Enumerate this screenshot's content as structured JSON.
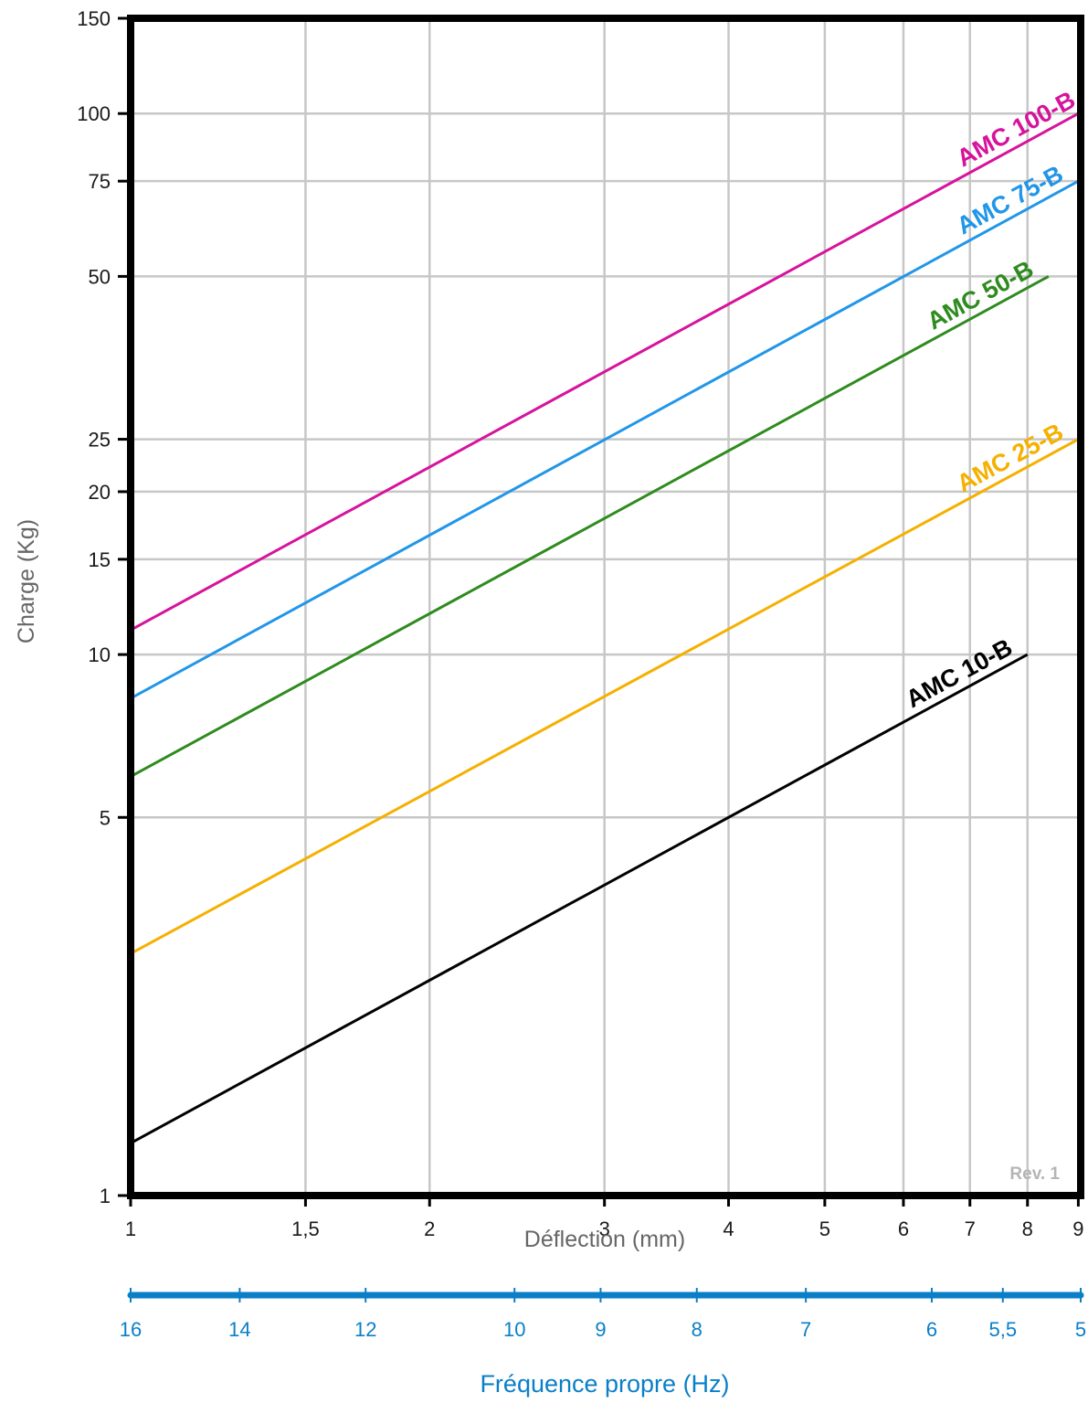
{
  "chart_data": {
    "type": "line",
    "xlabel": "Déflection (mm)",
    "ylabel": "Charge (Kg)",
    "xscale": "log",
    "yscale": "log",
    "xlim": [
      1,
      9.05
    ],
    "ylim": [
      1,
      150
    ],
    "x_ticks": [
      1,
      1.5,
      2,
      3,
      4,
      5,
      6,
      7,
      8,
      9
    ],
    "x_tick_labels": [
      "1",
      "1,5",
      "2",
      "3",
      "4",
      "5",
      "6",
      "7",
      "8",
      "9"
    ],
    "y_ticks": [
      1,
      5,
      10,
      15,
      20,
      25,
      50,
      75,
      100,
      150
    ],
    "y_tick_labels": [
      "1",
      "5",
      "10",
      "15",
      "20",
      "25",
      "50",
      "75",
      "100",
      "150"
    ],
    "grid": true,
    "series": [
      {
        "name": "AMC 100-B",
        "color": "#d6139c",
        "x": [
          1,
          9
        ],
        "y": [
          11.1,
          100
        ]
      },
      {
        "name": "AMC 75-B",
        "color": "#2196e8",
        "x": [
          1,
          9
        ],
        "y": [
          8.3,
          75
        ]
      },
      {
        "name": "AMC 50-B",
        "color": "#2e8b1e",
        "x": [
          1,
          8.4
        ],
        "y": [
          5.95,
          50
        ]
      },
      {
        "name": "AMC 25-B",
        "color": "#f5b000",
        "x": [
          1,
          9
        ],
        "y": [
          2.8,
          25
        ]
      },
      {
        "name": "AMC 10-B",
        "color": "#000000",
        "x": [
          1,
          8
        ],
        "y": [
          1.25,
          10
        ]
      }
    ],
    "secondary_axis": {
      "label": "Fréquence propre (Hz)",
      "color": "#0a7fc8",
      "ticks": [
        16,
        14,
        12,
        10,
        9,
        8,
        7,
        6,
        5.5,
        5
      ],
      "tick_labels": [
        "16",
        "14",
        "12",
        "10",
        "9",
        "8",
        "7",
        "6",
        "5,5",
        "5"
      ]
    },
    "annotation": "Rev. 1"
  }
}
